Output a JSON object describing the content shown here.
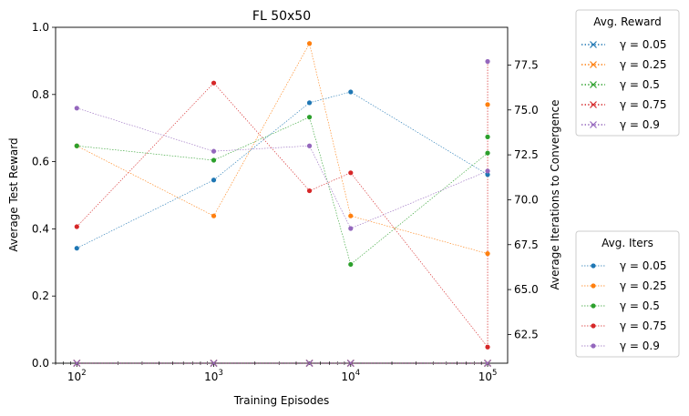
{
  "chart_data": {
    "type": "line",
    "title": "FL 50x50",
    "xlabel": "Training Episodes",
    "ylabel_left": "Average Test Reward",
    "ylabel_right": "Average Iterations to Convergence",
    "x_scale": "log",
    "xlim": [
      70,
      140000
    ],
    "ylim_left": [
      0,
      1.0
    ],
    "ylim_right": [
      60.9,
      79.6
    ],
    "x": [
      100,
      1000,
      5000,
      10000,
      100000
    ],
    "x_ticks": [
      {
        "value": 100,
        "base": "10",
        "exp": "2"
      },
      {
        "value": 1000,
        "base": "10",
        "exp": "3"
      },
      {
        "value": 10000,
        "base": "10",
        "exp": "4"
      },
      {
        "value": 100000,
        "base": "10",
        "exp": "5"
      }
    ],
    "y_ticks_left": [
      "0.0",
      "0.2",
      "0.4",
      "0.6",
      "0.8",
      "1.0"
    ],
    "y_ticks_right": [
      "62.5",
      "65.0",
      "67.5",
      "70.0",
      "72.5",
      "75.0",
      "77.5"
    ],
    "reward_series": [
      {
        "name": "γ = 0.05",
        "color": "#1f77b4",
        "values": [
          0,
          0,
          0,
          0,
          0
        ]
      },
      {
        "name": "γ = 0.25",
        "color": "#ff7f0e",
        "values": [
          0,
          0,
          0,
          0,
          0
        ]
      },
      {
        "name": "γ = 0.5",
        "color": "#2ca02c",
        "values": [
          0,
          0,
          0,
          0,
          0
        ]
      },
      {
        "name": "γ = 0.75",
        "color": "#d62728",
        "values": [
          0,
          0,
          0,
          0,
          0
        ]
      },
      {
        "name": "γ = 0.9",
        "color": "#9467bd",
        "values": [
          0,
          0,
          0,
          0,
          0
        ]
      }
    ],
    "iters_series": [
      {
        "name": "γ = 0.05",
        "color": "#1f77b4",
        "values": [
          67.3,
          71.1,
          75.4,
          76.0,
          71.4
        ]
      },
      {
        "name": "γ = 0.25",
        "color": "#ff7f0e",
        "values": [
          73.0,
          69.1,
          78.7,
          69.1,
          67.0
        ]
      },
      {
        "name": "γ = 0.5",
        "color": "#2ca02c",
        "values": [
          73.0,
          72.2,
          74.6,
          66.4,
          72.6
        ]
      },
      {
        "name": "γ = 0.75",
        "color": "#d62728",
        "values": [
          68.5,
          76.5,
          70.5,
          71.5,
          61.8
        ]
      },
      {
        "name": "γ = 0.9",
        "color": "#9467bd",
        "values": [
          75.1,
          72.7,
          73.0,
          68.4,
          71.6
        ]
      }
    ],
    "extra_points_at_last_x": [
      77.7,
      75.3,
      73.5
    ],
    "legend_reward": {
      "title": "Avg. Reward",
      "placement": "upper-right-outside"
    },
    "legend_iters": {
      "title": "Avg. Iters",
      "placement": "lower-right-outside"
    },
    "grid": false
  }
}
